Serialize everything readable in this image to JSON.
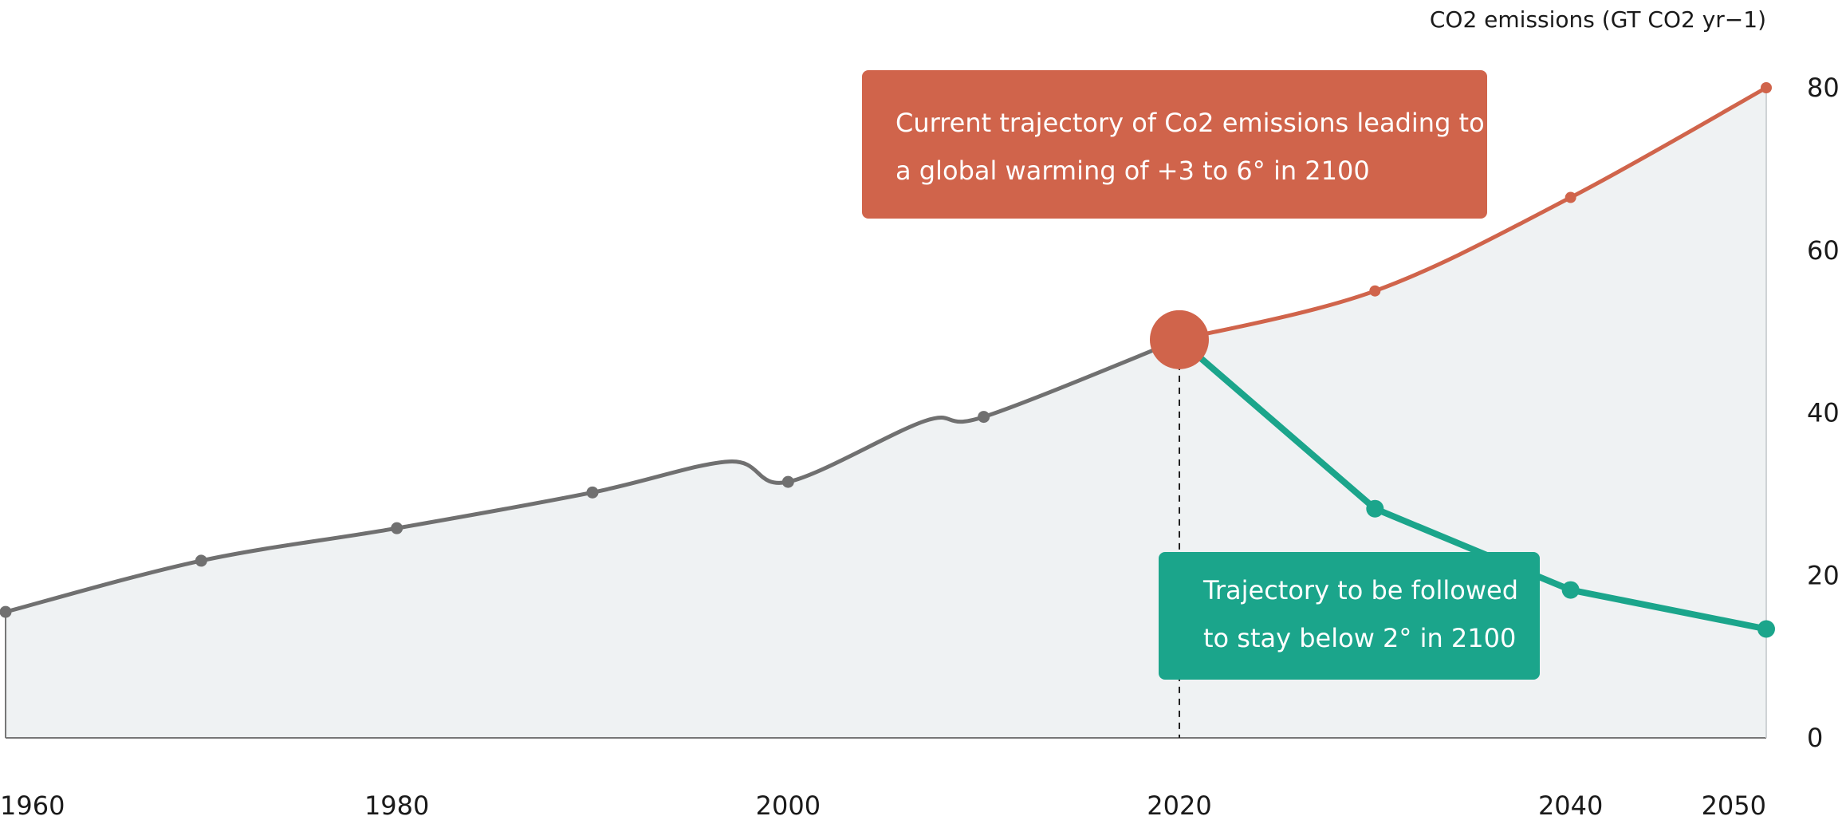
{
  "chart_data": {
    "type": "line",
    "title": "",
    "ylabel": "CO2 emissions (GT CO2 yr−1)",
    "xlabel": "",
    "xlim": [
      1960,
      2050
    ],
    "ylim": [
      0,
      80
    ],
    "x_ticks": [
      "1960",
      "1980",
      "2000",
      "2020",
      "2040",
      "2050"
    ],
    "y_ticks": [
      "0",
      "20",
      "40",
      "60",
      "80"
    ],
    "grid": false,
    "series": [
      {
        "key": "historical",
        "color": "#707070",
        "points": [
          [
            1960,
            15.5
          ],
          [
            1970,
            21.8
          ],
          [
            1980,
            25.8
          ],
          [
            1990,
            30.2
          ],
          [
            1997,
            34
          ],
          [
            2000,
            31.5
          ],
          [
            2007,
            39
          ],
          [
            2010,
            39.5
          ],
          [
            2020,
            49
          ]
        ]
      },
      {
        "key": "current",
        "color": "#d0644b",
        "points": [
          [
            2020,
            49
          ],
          [
            2030,
            55
          ],
          [
            2040,
            66.5
          ],
          [
            2050,
            80
          ]
        ]
      },
      {
        "key": "target",
        "color": "#1ba58b",
        "points": [
          [
            2020,
            49
          ],
          [
            2030,
            28.2
          ],
          [
            2040,
            18.2
          ],
          [
            2050,
            13.4
          ]
        ]
      }
    ],
    "marker_year": 2020,
    "annotations": [
      {
        "key": "current",
        "lines": [
          "Current trajectory of Co2 emissions leading to",
          "a global warming of +3 to  6° in 2100"
        ],
        "color": "#d0644b"
      },
      {
        "key": "target",
        "lines": [
          "Trajectory to be followed",
          "to stay below 2° in 2100"
        ],
        "color": "#1ba58b"
      }
    ]
  }
}
